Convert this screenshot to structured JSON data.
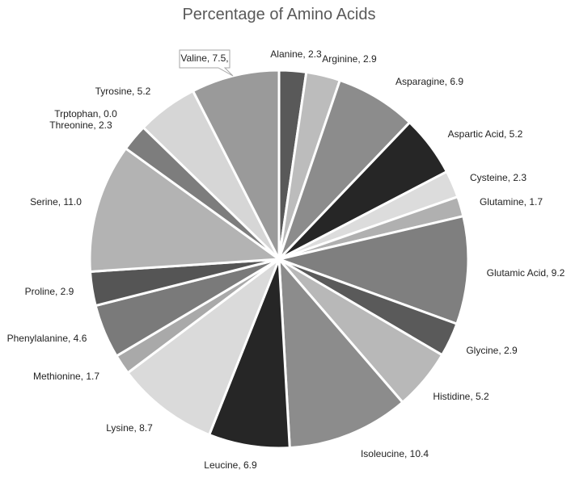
{
  "chart_data": {
    "type": "pie",
    "title": "Percentage of Amino Acids",
    "slices": [
      {
        "label": "Alanine",
        "value": 2.3,
        "text": "Alanine, 2.3",
        "color": "#595959"
      },
      {
        "label": "Arginine",
        "value": 2.9,
        "text": "Arginine, 2.9",
        "color": "#bcbcbc"
      },
      {
        "label": "Asparagine",
        "value": 6.9,
        "text": "Asparagine, 6.9",
        "color": "#8c8c8c"
      },
      {
        "label": "Aspartic Acid",
        "value": 5.2,
        "text": "Aspartic Acid, 5.2",
        "color": "#262626"
      },
      {
        "label": "Cysteine",
        "value": 2.3,
        "text": "Cysteine, 2.3",
        "color": "#dcdcdc"
      },
      {
        "label": "Glutamine",
        "value": 1.7,
        "text": "Glutamine, 1.7",
        "color": "#b0b0b0"
      },
      {
        "label": "Glutamic Acid",
        "value": 9.2,
        "text": "Glutamic Acid, 9.2",
        "color": "#7f7f7f"
      },
      {
        "label": "Glycine",
        "value": 2.9,
        "text": "Glycine, 2.9",
        "color": "#5a5a5a"
      },
      {
        "label": "Histidine",
        "value": 5.2,
        "text": "Histidine, 5.2",
        "color": "#b8b8b8"
      },
      {
        "label": "Isoleucine",
        "value": 10.4,
        "text": "Isoleucine, 10.4",
        "color": "#8c8c8c"
      },
      {
        "label": "Leucine",
        "value": 6.9,
        "text": "Leucine, 6.9",
        "color": "#262626"
      },
      {
        "label": "Lysine",
        "value": 8.7,
        "text": "Lysine, 8.7",
        "color": "#dadada"
      },
      {
        "label": "Methionine",
        "value": 1.7,
        "text": "Methionine, 1.7",
        "color": "#a9a9a9"
      },
      {
        "label": "Phenylalanine",
        "value": 4.6,
        "text": "Phenylalanine, 4.6",
        "color": "#7a7a7a"
      },
      {
        "label": "Proline",
        "value": 2.9,
        "text": "Proline, 2.9",
        "color": "#555555"
      },
      {
        "label": "Serine",
        "value": 11.0,
        "text": "Serine, 11.0",
        "color": "#b3b3b3"
      },
      {
        "label": "Threonine",
        "value": 2.3,
        "text": "Threonine, 2.3",
        "color": "#7d7d7d"
      },
      {
        "label": "Trptophan",
        "value": 0.0,
        "text": "Trptophan, 0.0",
        "color": "#303030"
      },
      {
        "label": "Tyrosine",
        "value": 5.2,
        "text": "Tyrosine, 5.2",
        "color": "#d6d6d6"
      },
      {
        "label": "Valine",
        "value": 7.5,
        "text": "Valine, 7.5,",
        "color": "#9a9a9a"
      }
    ]
  }
}
